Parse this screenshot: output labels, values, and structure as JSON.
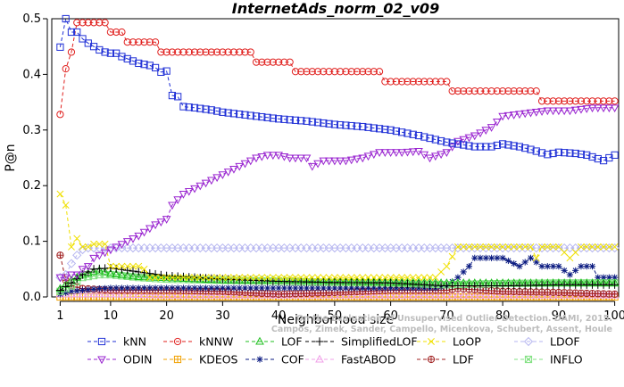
{
  "chart_data": {
    "type": "line",
    "title": "InternetAds_norm_02_v09",
    "xlabel": "Neighborhood size",
    "ylabel": "P@n",
    "xlim": [
      0,
      100
    ],
    "ylim": [
      0,
      0.5
    ],
    "x_ticks": [
      1,
      10,
      20,
      30,
      40,
      50,
      60,
      70,
      80,
      90,
      100
    ],
    "y_ticks": [
      0.0,
      0.1,
      0.2,
      0.3,
      0.4,
      0.5
    ],
    "x_tick_labels": [
      "1",
      "10",
      "20",
      "30",
      "40",
      "50",
      "60",
      "70",
      "80",
      "90",
      "100"
    ],
    "y_tick_labels": [
      "0.0",
      "0.1",
      "0.2",
      "0.3",
      "0.4",
      "0.5"
    ],
    "grid": false,
    "legend_position": "bottom",
    "watermark_lines": [
      "Campos, Zimek, Sander, Campello, Micenkova, Schubert, Assent, Houle",
      "On the Evaluation of Unsupervised Outlier Detection. DAMI, 2015."
    ],
    "series": [
      {
        "name": "kNN",
        "color": "#1f2fd6",
        "marker": "square",
        "dash": "4,3",
        "points": [
          [
            1,
            0.449
          ],
          [
            2,
            0.5
          ],
          [
            3,
            0.476
          ],
          [
            4,
            0.476
          ],
          [
            5,
            0.464
          ],
          [
            6,
            0.456
          ],
          [
            7,
            0.45
          ],
          [
            8,
            0.444
          ],
          [
            9,
            0.44
          ],
          [
            10,
            0.438
          ],
          [
            11,
            0.438
          ],
          [
            12,
            0.432
          ],
          [
            13,
            0.428
          ],
          [
            14,
            0.424
          ],
          [
            15,
            0.42
          ],
          [
            16,
            0.418
          ],
          [
            17,
            0.416
          ],
          [
            18,
            0.412
          ],
          [
            19,
            0.404
          ],
          [
            20,
            0.406
          ],
          [
            21,
            0.362
          ],
          [
            22,
            0.36
          ],
          [
            23,
            0.342
          ],
          [
            25,
            0.34
          ],
          [
            28,
            0.336
          ],
          [
            30,
            0.332
          ],
          [
            35,
            0.326
          ],
          [
            40,
            0.32
          ],
          [
            45,
            0.316
          ],
          [
            50,
            0.31
          ],
          [
            55,
            0.306
          ],
          [
            60,
            0.3
          ],
          [
            65,
            0.29
          ],
          [
            70,
            0.278
          ],
          [
            75,
            0.27
          ],
          [
            78,
            0.27
          ],
          [
            80,
            0.275
          ],
          [
            83,
            0.27
          ],
          [
            85,
            0.265
          ],
          [
            88,
            0.256
          ],
          [
            90,
            0.26
          ],
          [
            93,
            0.258
          ],
          [
            95,
            0.255
          ],
          [
            98,
            0.245
          ],
          [
            100,
            0.255
          ]
        ]
      },
      {
        "name": "kNNW",
        "color": "#e0201e",
        "marker": "circle",
        "dash": "4,3",
        "points": [
          [
            1,
            0.328
          ],
          [
            2,
            0.41
          ],
          [
            3,
            0.44
          ],
          [
            4,
            0.493
          ],
          [
            5,
            0.493
          ],
          [
            6,
            0.493
          ],
          [
            7,
            0.493
          ],
          [
            8,
            0.493
          ],
          [
            9,
            0.493
          ],
          [
            10,
            0.476
          ],
          [
            11,
            0.476
          ],
          [
            12,
            0.476
          ],
          [
            13,
            0.458
          ],
          [
            14,
            0.458
          ],
          [
            15,
            0.458
          ],
          [
            16,
            0.458
          ],
          [
            17,
            0.458
          ],
          [
            18,
            0.458
          ],
          [
            19,
            0.44
          ],
          [
            20,
            0.44
          ],
          [
            30,
            0.44
          ],
          [
            35,
            0.44
          ],
          [
            36,
            0.422
          ],
          [
            40,
            0.422
          ],
          [
            42,
            0.422
          ],
          [
            43,
            0.405
          ],
          [
            50,
            0.405
          ],
          [
            58,
            0.405
          ],
          [
            59,
            0.387
          ],
          [
            70,
            0.387
          ],
          [
            71,
            0.37
          ],
          [
            86,
            0.37
          ],
          [
            87,
            0.352
          ],
          [
            100,
            0.352
          ]
        ]
      },
      {
        "name": "LOF",
        "color": "#1fbf1f",
        "marker": "triangle-up",
        "dash": "4,3",
        "points": [
          [
            1,
            0.015
          ],
          [
            3,
            0.03
          ],
          [
            5,
            0.04
          ],
          [
            8,
            0.048
          ],
          [
            10,
            0.042
          ],
          [
            15,
            0.036
          ],
          [
            20,
            0.034
          ],
          [
            30,
            0.03
          ],
          [
            40,
            0.03
          ],
          [
            50,
            0.028
          ],
          [
            60,
            0.026
          ],
          [
            70,
            0.025
          ],
          [
            80,
            0.025
          ],
          [
            90,
            0.025
          ],
          [
            100,
            0.025
          ]
        ]
      },
      {
        "name": "SimplifiedLOF",
        "color": "#000000",
        "marker": "plus",
        "dash": "4,3",
        "points": [
          [
            1,
            0.012
          ],
          [
            3,
            0.025
          ],
          [
            5,
            0.04
          ],
          [
            7,
            0.05
          ],
          [
            10,
            0.052
          ],
          [
            15,
            0.045
          ],
          [
            20,
            0.038
          ],
          [
            30,
            0.032
          ],
          [
            40,
            0.028
          ],
          [
            50,
            0.026
          ],
          [
            60,
            0.025
          ],
          [
            70,
            0.02
          ],
          [
            80,
            0.02
          ],
          [
            90,
            0.022
          ],
          [
            100,
            0.022
          ]
        ]
      },
      {
        "name": "LoOP",
        "color": "#f0e000",
        "marker": "x",
        "dash": "4,3",
        "points": [
          [
            1,
            0.185
          ],
          [
            2,
            0.165
          ],
          [
            3,
            0.09
          ],
          [
            4,
            0.105
          ],
          [
            5,
            0.09
          ],
          [
            6,
            0.09
          ],
          [
            7,
            0.095
          ],
          [
            8,
            0.095
          ],
          [
            9,
            0.095
          ],
          [
            10,
            0.055
          ],
          [
            15,
            0.055
          ],
          [
            16,
            0.05
          ],
          [
            17,
            0.035
          ],
          [
            20,
            0.035
          ],
          [
            25,
            0.035
          ],
          [
            30,
            0.035
          ],
          [
            40,
            0.035
          ],
          [
            50,
            0.035
          ],
          [
            60,
            0.035
          ],
          [
            68,
            0.035
          ],
          [
            70,
            0.055
          ],
          [
            72,
            0.09
          ],
          [
            80,
            0.09
          ],
          [
            85,
            0.09
          ],
          [
            86,
            0.07
          ],
          [
            87,
            0.09
          ],
          [
            90,
            0.09
          ],
          [
            92,
            0.07
          ],
          [
            94,
            0.09
          ],
          [
            100,
            0.09
          ]
        ]
      },
      {
        "name": "LDOF",
        "color": "#b6b6f0",
        "marker": "diamond",
        "dash": "4,3",
        "points": [
          [
            1,
            0.035
          ],
          [
            2,
            0.04
          ],
          [
            3,
            0.06
          ],
          [
            4,
            0.075
          ],
          [
            5,
            0.085
          ],
          [
            6,
            0.088
          ],
          [
            8,
            0.088
          ],
          [
            10,
            0.088
          ],
          [
            20,
            0.088
          ],
          [
            30,
            0.088
          ],
          [
            40,
            0.088
          ],
          [
            50,
            0.088
          ],
          [
            60,
            0.088
          ],
          [
            70,
            0.088
          ],
          [
            80,
            0.088
          ],
          [
            90,
            0.088
          ],
          [
            100,
            0.088
          ]
        ]
      },
      {
        "name": "ODIN",
        "color": "#9a26d0",
        "marker": "triangle-down",
        "dash": "4,3",
        "points": [
          [
            1,
            0.035
          ],
          [
            2,
            0.035
          ],
          [
            3,
            0.04
          ],
          [
            4,
            0.04
          ],
          [
            5,
            0.05
          ],
          [
            6,
            0.055
          ],
          [
            7,
            0.07
          ],
          [
            8,
            0.075
          ],
          [
            9,
            0.08
          ],
          [
            10,
            0.085
          ],
          [
            12,
            0.095
          ],
          [
            15,
            0.11
          ],
          [
            18,
            0.13
          ],
          [
            20,
            0.14
          ],
          [
            21,
            0.165
          ],
          [
            23,
            0.185
          ],
          [
            25,
            0.195
          ],
          [
            28,
            0.21
          ],
          [
            30,
            0.22
          ],
          [
            33,
            0.235
          ],
          [
            36,
            0.25
          ],
          [
            38,
            0.255
          ],
          [
            40,
            0.255
          ],
          [
            42,
            0.25
          ],
          [
            45,
            0.25
          ],
          [
            46,
            0.235
          ],
          [
            48,
            0.245
          ],
          [
            52,
            0.245
          ],
          [
            55,
            0.25
          ],
          [
            58,
            0.26
          ],
          [
            62,
            0.26
          ],
          [
            65,
            0.262
          ],
          [
            67,
            0.25
          ],
          [
            70,
            0.26
          ],
          [
            72,
            0.28
          ],
          [
            75,
            0.29
          ],
          [
            78,
            0.305
          ],
          [
            80,
            0.325
          ],
          [
            84,
            0.33
          ],
          [
            88,
            0.335
          ],
          [
            92,
            0.335
          ],
          [
            96,
            0.34
          ],
          [
            100,
            0.34
          ]
        ]
      },
      {
        "name": "KDEOS",
        "color": "#f0a000",
        "marker": "square-cross",
        "dash": "4,3",
        "points": [
          [
            1,
            0.0
          ],
          [
            10,
            0.0
          ],
          [
            20,
            0.0
          ],
          [
            30,
            0.0
          ],
          [
            40,
            0.0
          ],
          [
            50,
            0.0
          ],
          [
            60,
            0.0
          ],
          [
            70,
            0.0
          ],
          [
            80,
            0.0
          ],
          [
            90,
            0.0
          ],
          [
            100,
            0.0
          ]
        ]
      },
      {
        "name": "COF",
        "color": "#0a1a80",
        "marker": "asterisk",
        "dash": "4,3",
        "points": [
          [
            1,
            0.005
          ],
          [
            3,
            0.01
          ],
          [
            5,
            0.012
          ],
          [
            8,
            0.015
          ],
          [
            10,
            0.016
          ],
          [
            15,
            0.016
          ],
          [
            20,
            0.016
          ],
          [
            30,
            0.016
          ],
          [
            40,
            0.016
          ],
          [
            50,
            0.016
          ],
          [
            60,
            0.016
          ],
          [
            68,
            0.016
          ],
          [
            70,
            0.02
          ],
          [
            72,
            0.035
          ],
          [
            74,
            0.055
          ],
          [
            75,
            0.07
          ],
          [
            80,
            0.07
          ],
          [
            83,
            0.055
          ],
          [
            85,
            0.07
          ],
          [
            87,
            0.055
          ],
          [
            90,
            0.055
          ],
          [
            92,
            0.04
          ],
          [
            94,
            0.055
          ],
          [
            96,
            0.055
          ],
          [
            97,
            0.035
          ],
          [
            100,
            0.035
          ]
        ]
      },
      {
        "name": "FastABOD",
        "color": "#f0a0e8",
        "marker": "triangle-up",
        "dash": "4,3",
        "points": [
          [
            1,
            0.005
          ],
          [
            5,
            0.005
          ],
          [
            10,
            0.005
          ],
          [
            20,
            0.003
          ],
          [
            30,
            0.003
          ],
          [
            40,
            0.003
          ],
          [
            50,
            0.003
          ],
          [
            60,
            0.003
          ],
          [
            70,
            0.003
          ],
          [
            80,
            0.003
          ],
          [
            90,
            0.003
          ],
          [
            100,
            0.003
          ]
        ]
      },
      {
        "name": "LDF",
        "color": "#a02020",
        "marker": "circle-plus",
        "dash": "4,3",
        "points": [
          [
            1,
            0.075
          ],
          [
            2,
            0.03
          ],
          [
            3,
            0.02
          ],
          [
            5,
            0.015
          ],
          [
            10,
            0.012
          ],
          [
            20,
            0.012
          ],
          [
            30,
            0.01
          ],
          [
            40,
            0.005
          ],
          [
            50,
            0.008
          ],
          [
            55,
            0.01
          ],
          [
            60,
            0.012
          ],
          [
            70,
            0.012
          ],
          [
            72,
            0.015
          ],
          [
            80,
            0.01
          ],
          [
            90,
            0.008
          ],
          [
            100,
            0.005
          ]
        ]
      },
      {
        "name": "INFLO",
        "color": "#80e080",
        "marker": "square-x",
        "dash": "4,3",
        "points": [
          [
            1,
            0.01
          ],
          [
            3,
            0.02
          ],
          [
            5,
            0.035
          ],
          [
            8,
            0.04
          ],
          [
            10,
            0.04
          ],
          [
            15,
            0.035
          ],
          [
            20,
            0.032
          ],
          [
            30,
            0.03
          ],
          [
            40,
            0.028
          ],
          [
            50,
            0.026
          ],
          [
            60,
            0.025
          ],
          [
            70,
            0.022
          ],
          [
            80,
            0.024
          ],
          [
            90,
            0.025
          ],
          [
            100,
            0.025
          ]
        ]
      }
    ]
  }
}
